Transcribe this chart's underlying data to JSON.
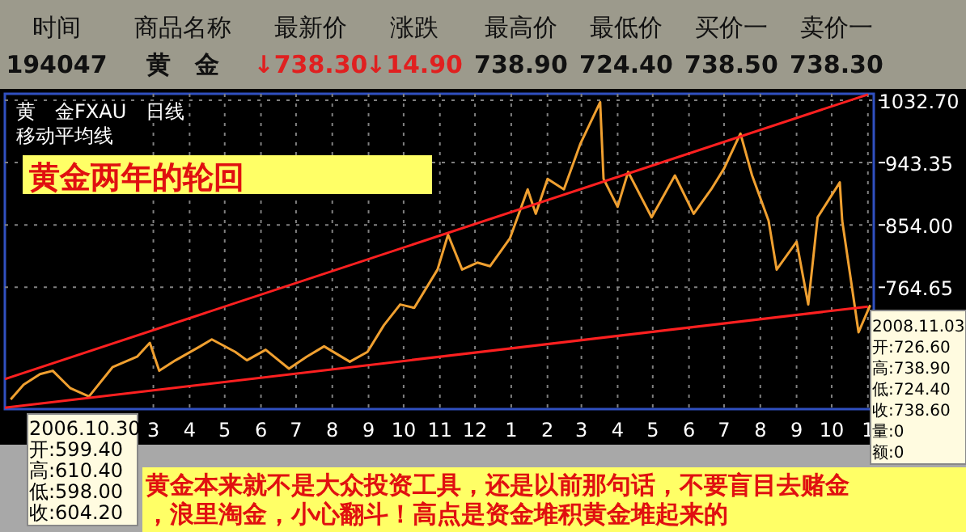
{
  "chart_data": {
    "type": "line",
    "title": "黄金两年的轮回",
    "subtitle": "黄　金FXAU　日线",
    "annotations": [
      "时间",
      "商品名称",
      "最新价",
      "涨跌",
      "最高价",
      "最低价",
      "买价一",
      "卖价一",
      "194047",
      "黄　金",
      "↓738.30",
      "↓14.90",
      "738.90",
      "724.40",
      "738.50",
      "738.30",
      "移动平均线",
      "2006.10.30\n开:599.40\n高:610.40\n低:598.00\n收:604.20",
      "2008.11.03\n开:726.60\n高:738.90\n低:724.40\n收:738.60\n量:0\n额:0",
      "黄金本来就不是大众投资工具，还是以前那句话，不要盲目去赌金",
      "，浪里淘金，小心翻斗！高点是资金堆积黄金堆起来的"
    ],
    "xlim": [
      "2006-10-25",
      "2008-11-06"
    ],
    "xticks": [
      {
        "value": "2007-03-01",
        "label": "3"
      },
      {
        "value": "2007-04-01",
        "label": "4"
      },
      {
        "value": "2007-05-01",
        "label": "5"
      },
      {
        "value": "2007-06-01",
        "label": "6"
      },
      {
        "value": "2007-07-01",
        "label": "7"
      },
      {
        "value": "2007-08-01",
        "label": "8"
      },
      {
        "value": "2007-09-01",
        "label": "9"
      },
      {
        "value": "2007-10-01",
        "label": "10"
      },
      {
        "value": "2007-11-01",
        "label": "11"
      },
      {
        "value": "2007-12-01",
        "label": "12"
      },
      {
        "value": "2008-01-01",
        "label": "1"
      },
      {
        "value": "2008-02-01",
        "label": "2"
      },
      {
        "value": "2008-03-01",
        "label": "3"
      },
      {
        "value": "2008-04-01",
        "label": "4"
      },
      {
        "value": "2008-05-01",
        "label": "5"
      },
      {
        "value": "2008-06-01",
        "label": "6"
      },
      {
        "value": "2008-07-01",
        "label": "7"
      },
      {
        "value": "2008-08-01",
        "label": "8"
      },
      {
        "value": "2008-09-01",
        "label": "9"
      },
      {
        "value": "2008-10-01",
        "label": "10"
      },
      {
        "value": "2008-11-01",
        "label": "1"
      }
    ],
    "ylim": [
      590,
      1042
    ],
    "yticks": [
      764.65,
      {
        "value": 854,
        "label": "854.00"
      },
      943.35,
      {
        "value": 1032.7,
        "label": "1032.70"
      }
    ],
    "grid": true,
    "series": [
      {
        "color": "#f0a030",
        "x": [
          "2006-10-30",
          "2006-11-10",
          "2006-11-24",
          "2006-12-05",
          "2006-12-20",
          "2007-01-05",
          "2007-01-25",
          "2007-02-15",
          "2007-02-26",
          "2007-03-06",
          "2007-03-20",
          "2007-04-10",
          "2007-04-20",
          "2007-05-10",
          "2007-05-20",
          "2007-06-05",
          "2007-06-25",
          "2007-07-10",
          "2007-07-25",
          "2007-08-16",
          "2007-08-31",
          "2007-09-14",
          "2007-09-28",
          "2007-10-10",
          "2007-10-30",
          "2007-11-08",
          "2007-11-20",
          "2007-12-03",
          "2007-12-14",
          "2007-12-31",
          "2008-01-15",
          "2008-01-22",
          "2008-02-01",
          "2008-02-15",
          "2008-02-29",
          "2008-03-17",
          "2008-03-20",
          "2008-04-01",
          "2008-04-10",
          "2008-04-30",
          "2008-05-20",
          "2008-06-05",
          "2008-06-20",
          "2008-07-01",
          "2008-07-15",
          "2008-07-25",
          "2008-08-08",
          "2008-08-15",
          "2008-09-01",
          "2008-09-11",
          "2008-09-19",
          "2008-10-08",
          "2008-10-10",
          "2008-10-24",
          "2008-11-03"
        ],
        "values": [
          604,
          625,
          640,
          645,
          620,
          608,
          650,
          665,
          685,
          645,
          660,
          680,
          690,
          672,
          660,
          675,
          648,
          665,
          680,
          658,
          672,
          710,
          740,
          735,
          790,
          840,
          790,
          800,
          795,
          835,
          905,
          870,
          920,
          905,
          970,
          1030,
          920,
          880,
          930,
          865,
          925,
          870,
          905,
          935,
          985,
          925,
          860,
          790,
          830,
          740,
          865,
          915,
          860,
          700,
          739
        ]
      },
      {
        "color": "#ff2020",
        "x": [
          "2006-10-25",
          "2008-11-01"
        ],
        "values": [
          633,
          1041
        ]
      },
      {
        "color": "#ff2020",
        "x": [
          "2006-10-25",
          "2008-11-01"
        ],
        "values": [
          592,
          737
        ]
      }
    ]
  }
}
